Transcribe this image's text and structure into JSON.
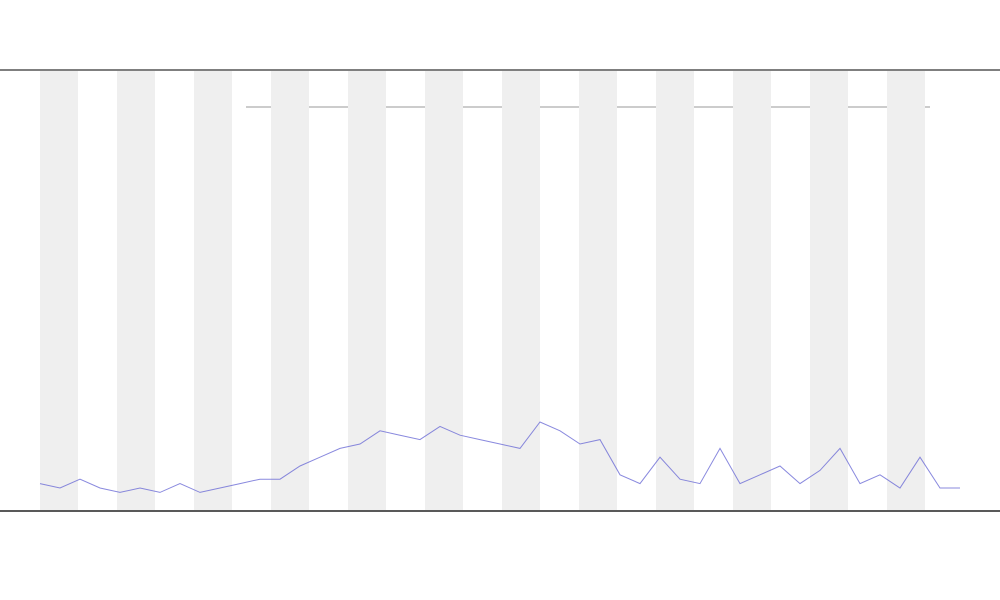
{
  "chart_data": {
    "type": "line",
    "x": [
      0,
      2,
      4,
      6,
      8,
      10,
      12,
      14,
      16,
      18,
      20,
      22,
      24,
      26,
      28,
      30,
      32,
      34,
      36,
      38,
      40,
      42,
      44,
      46,
      48,
      50,
      52,
      54,
      56,
      58,
      60,
      62,
      64,
      66,
      68,
      70,
      72,
      74,
      76,
      78,
      80,
      82,
      84,
      86,
      88,
      90,
      92
    ],
    "series": [
      {
        "color": "#6b6bd6",
        "values": [
          6,
          5,
          7,
          5,
          4,
          5,
          4,
          6,
          4,
          5,
          6,
          7,
          7,
          10,
          12,
          14,
          15,
          18,
          17,
          16,
          19,
          17,
          16,
          15,
          14,
          20,
          18,
          15,
          16,
          8,
          6,
          12,
          7,
          6,
          14,
          6,
          8,
          10,
          6,
          9,
          14,
          6,
          8,
          5,
          12,
          5,
          5
        ]
      }
    ],
    "xlim": [
      0,
      92
    ],
    "ylim": [
      0,
      100
    ]
  }
}
